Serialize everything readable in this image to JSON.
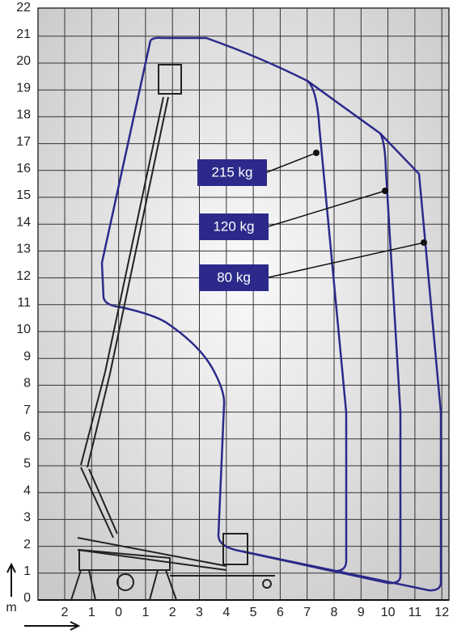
{
  "axes": {
    "y_labels": [
      "0",
      "1",
      "2",
      "3",
      "4",
      "5",
      "6",
      "7",
      "8",
      "9",
      "10",
      "11",
      "12",
      "13",
      "14",
      "15",
      "16",
      "17",
      "18",
      "19",
      "20",
      "21",
      "22"
    ],
    "x_labels": [
      "2",
      "1",
      "0",
      "1",
      "2",
      "3",
      "4",
      "5",
      "6",
      "7",
      "8",
      "9",
      "10",
      "11",
      "12"
    ],
    "unit": "m"
  },
  "loads": [
    {
      "label": "215 kg"
    },
    {
      "label": "120 kg"
    },
    {
      "label": "80 kg"
    }
  ]
}
